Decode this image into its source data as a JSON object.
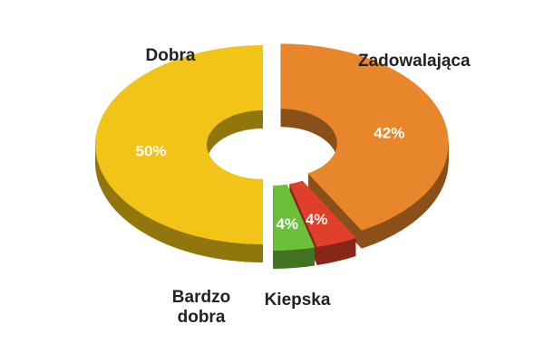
{
  "chart_data": {
    "type": "donut",
    "categories": [
      "Zadowalająca",
      "Kiepska",
      "Bardzo dobra",
      "Dobra"
    ],
    "values": [
      42,
      4,
      4,
      50
    ],
    "value_labels": [
      "42%",
      "4%",
      "4%",
      "50%"
    ],
    "colors": [
      "#e8862c",
      "#e0402a",
      "#6cbf3a",
      "#f2c418"
    ]
  }
}
